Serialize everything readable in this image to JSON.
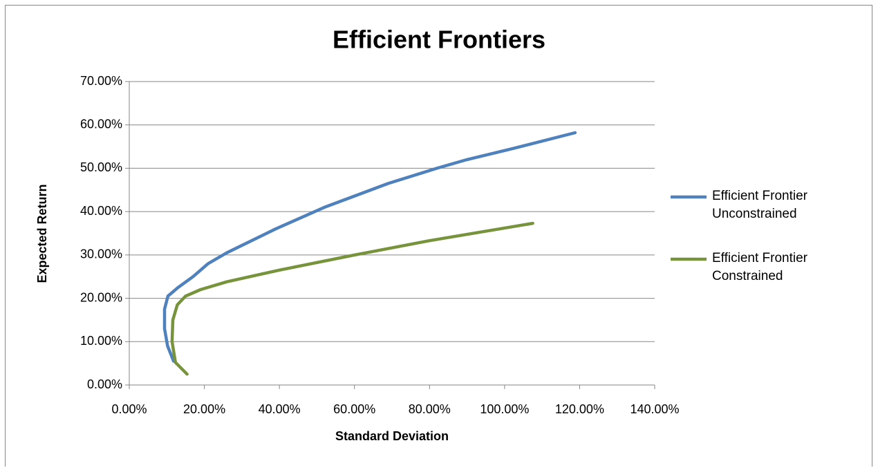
{
  "chart_data": {
    "type": "line",
    "title": "Efficient Frontiers",
    "x_label": "Standard Deviation",
    "y_label": "Expected Return",
    "xlim": [
      0,
      140
    ],
    "ylim": [
      0,
      70
    ],
    "xticks": [
      {
        "value": 0,
        "label": "0.00%"
      },
      {
        "value": 20,
        "label": "20.00%"
      },
      {
        "value": 40,
        "label": "40.00%"
      },
      {
        "value": 60,
        "label": "60.00%"
      },
      {
        "value": 80,
        "label": "80.00%"
      },
      {
        "value": 100,
        "label": "100.00%"
      },
      {
        "value": 120,
        "label": "120.00%"
      },
      {
        "value": 140,
        "label": "140.00%"
      }
    ],
    "yticks": [
      {
        "value": 0,
        "label": "0.00%"
      },
      {
        "value": 10,
        "label": "10.00%"
      },
      {
        "value": 20,
        "label": "20.00%"
      },
      {
        "value": 30,
        "label": "30.00%"
      },
      {
        "value": 40,
        "label": "40.00%"
      },
      {
        "value": 50,
        "label": "50.00%"
      },
      {
        "value": 60,
        "label": "60.00%"
      },
      {
        "value": 70,
        "label": "70.00%"
      }
    ],
    "grid": true,
    "legend": "right",
    "series": [
      {
        "name": "Efficient Frontier Unconstrained",
        "color": "#4f81bd",
        "x": [
          11.8,
          10.2,
          9.4,
          9.4,
          10.3,
          13,
          17,
          21,
          26,
          39,
          52,
          69,
          82,
          90,
          102,
          118.8
        ],
        "values": [
          5.5,
          9,
          13,
          17.5,
          20.5,
          22.5,
          25,
          28,
          30.5,
          36,
          41,
          46.5,
          50,
          52,
          54.5,
          58.2
        ]
      },
      {
        "name": "Efficient Frontier Constrained",
        "color": "#77933c",
        "x": [
          15.4,
          12.3,
          11.4,
          11.6,
          12.8,
          15,
          19,
          26,
          40,
          60,
          80,
          107.5
        ],
        "values": [
          2.5,
          5.2,
          10,
          15,
          18.5,
          20.5,
          22,
          23.8,
          26.5,
          30,
          33.3,
          37.3
        ]
      }
    ]
  }
}
